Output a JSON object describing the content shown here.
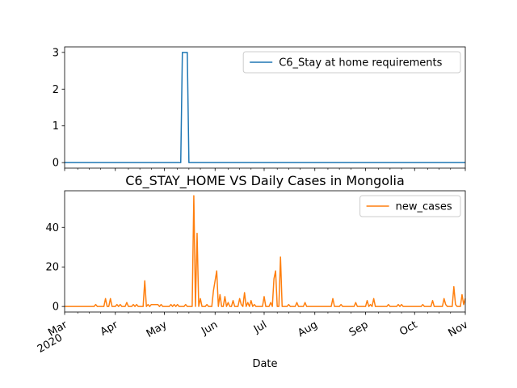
{
  "chart_data": [
    {
      "type": "line",
      "title": "",
      "xlabel": "",
      "ylabel": "",
      "xlim": [
        "2020-03-01",
        "2020-11-01"
      ],
      "ylim": [
        -0.15,
        3.15
      ],
      "yticks": [
        0,
        1,
        2,
        3
      ],
      "show_x_tick_labels": false,
      "grid": false,
      "legend_position": "top-right",
      "series": [
        {
          "name": "C6_Stay at home requirements",
          "color": "#1f77b4",
          "points": [
            [
              "2020-03-01",
              0
            ],
            [
              "2020-05-11",
              0
            ],
            [
              "2020-05-12",
              3
            ],
            [
              "2020-05-15",
              3
            ],
            [
              "2020-05-16",
              0
            ],
            [
              "2020-11-01",
              0
            ]
          ]
        }
      ]
    },
    {
      "type": "line",
      "title": "C6_STAY_HOME VS Daily Cases in Mongolia",
      "xlabel": "Date",
      "ylabel": "",
      "xlim": [
        "2020-03-01",
        "2020-11-01"
      ],
      "ylim": [
        -2.8,
        58.5
      ],
      "yticks": [
        0,
        20,
        40
      ],
      "xticks": [
        {
          "date": "2020-03-01",
          "label": "Mar",
          "sublabel": "2020"
        },
        {
          "date": "2020-04-01",
          "label": "Apr",
          "sublabel": ""
        },
        {
          "date": "2020-05-01",
          "label": "May",
          "sublabel": ""
        },
        {
          "date": "2020-06-01",
          "label": "Jun",
          "sublabel": ""
        },
        {
          "date": "2020-07-01",
          "label": "Jul",
          "sublabel": ""
        },
        {
          "date": "2020-08-01",
          "label": "Aug",
          "sublabel": ""
        },
        {
          "date": "2020-09-01",
          "label": "Sep",
          "sublabel": ""
        },
        {
          "date": "2020-10-01",
          "label": "Oct",
          "sublabel": ""
        },
        {
          "date": "2020-11-01",
          "label": "Nov",
          "sublabel": ""
        }
      ],
      "grid": false,
      "legend_position": "top-right",
      "series": [
        {
          "name": "new_cases",
          "color": "#ff7f0e",
          "points": [
            [
              "2020-03-01",
              0
            ],
            [
              "2020-03-19",
              0
            ],
            [
              "2020-03-20",
              1
            ],
            [
              "2020-03-21",
              0
            ],
            [
              "2020-03-25",
              0
            ],
            [
              "2020-03-26",
              4
            ],
            [
              "2020-03-27",
              0
            ],
            [
              "2020-03-28",
              0
            ],
            [
              "2020-03-29",
              4
            ],
            [
              "2020-03-30",
              0
            ],
            [
              "2020-04-01",
              0
            ],
            [
              "2020-04-02",
              1
            ],
            [
              "2020-04-03",
              0
            ],
            [
              "2020-04-04",
              1
            ],
            [
              "2020-04-05",
              0
            ],
            [
              "2020-04-07",
              0
            ],
            [
              "2020-04-08",
              2
            ],
            [
              "2020-04-09",
              0
            ],
            [
              "2020-04-11",
              0
            ],
            [
              "2020-04-12",
              1
            ],
            [
              "2020-04-13",
              0
            ],
            [
              "2020-04-14",
              1
            ],
            [
              "2020-04-15",
              0
            ],
            [
              "2020-04-18",
              0
            ],
            [
              "2020-04-19",
              13
            ],
            [
              "2020-04-20",
              0
            ],
            [
              "2020-04-21",
              1
            ],
            [
              "2020-04-22",
              0
            ],
            [
              "2020-04-23",
              1
            ],
            [
              "2020-04-27",
              1
            ],
            [
              "2020-04-28",
              0
            ],
            [
              "2020-04-29",
              1
            ],
            [
              "2020-04-30",
              0
            ],
            [
              "2020-05-04",
              0
            ],
            [
              "2020-05-05",
              1
            ],
            [
              "2020-05-06",
              0
            ],
            [
              "2020-05-07",
              1
            ],
            [
              "2020-05-08",
              0
            ],
            [
              "2020-05-09",
              1
            ],
            [
              "2020-05-10",
              0
            ],
            [
              "2020-05-13",
              0
            ],
            [
              "2020-05-14",
              1
            ],
            [
              "2020-05-15",
              0
            ],
            [
              "2020-05-18",
              0
            ],
            [
              "2020-05-19",
              56
            ],
            [
              "2020-05-20",
              0
            ],
            [
              "2020-05-21",
              37
            ],
            [
              "2020-05-22",
              0
            ],
            [
              "2020-05-23",
              4
            ],
            [
              "2020-05-24",
              0
            ],
            [
              "2020-05-26",
              0
            ],
            [
              "2020-05-27",
              1
            ],
            [
              "2020-05-28",
              0
            ],
            [
              "2020-05-30",
              0
            ],
            [
              "2020-05-31",
              8
            ],
            [
              "2020-06-02",
              18
            ],
            [
              "2020-06-03",
              0
            ],
            [
              "2020-06-04",
              6
            ],
            [
              "2020-06-05",
              0
            ],
            [
              "2020-06-06",
              0
            ],
            [
              "2020-06-07",
              5
            ],
            [
              "2020-06-08",
              0
            ],
            [
              "2020-06-09",
              2
            ],
            [
              "2020-06-10",
              0
            ],
            [
              "2020-06-11",
              0
            ],
            [
              "2020-06-12",
              3
            ],
            [
              "2020-06-13",
              0
            ],
            [
              "2020-06-15",
              0
            ],
            [
              "2020-06-16",
              4
            ],
            [
              "2020-06-17",
              1
            ],
            [
              "2020-06-18",
              0
            ],
            [
              "2020-06-19",
              7
            ],
            [
              "2020-06-20",
              0
            ],
            [
              "2020-06-21",
              2
            ],
            [
              "2020-06-22",
              0
            ],
            [
              "2020-06-23",
              3
            ],
            [
              "2020-06-24",
              0
            ],
            [
              "2020-06-25",
              1
            ],
            [
              "2020-06-26",
              0
            ],
            [
              "2020-06-30",
              0
            ],
            [
              "2020-07-01",
              5
            ],
            [
              "2020-07-02",
              0
            ],
            [
              "2020-07-04",
              0
            ],
            [
              "2020-07-05",
              2
            ],
            [
              "2020-07-06",
              0
            ],
            [
              "2020-07-07",
              14
            ],
            [
              "2020-07-08",
              18
            ],
            [
              "2020-07-09",
              0
            ],
            [
              "2020-07-10",
              0
            ],
            [
              "2020-07-11",
              25
            ],
            [
              "2020-07-12",
              0
            ],
            [
              "2020-07-15",
              0
            ],
            [
              "2020-07-16",
              1
            ],
            [
              "2020-07-17",
              0
            ],
            [
              "2020-07-20",
              0
            ],
            [
              "2020-07-21",
              2
            ],
            [
              "2020-07-22",
              0
            ],
            [
              "2020-07-25",
              0
            ],
            [
              "2020-07-26",
              2
            ],
            [
              "2020-07-27",
              0
            ],
            [
              "2020-08-11",
              0
            ],
            [
              "2020-08-12",
              4
            ],
            [
              "2020-08-13",
              0
            ],
            [
              "2020-08-16",
              0
            ],
            [
              "2020-08-17",
              1
            ],
            [
              "2020-08-18",
              0
            ],
            [
              "2020-08-25",
              0
            ],
            [
              "2020-08-26",
              2
            ],
            [
              "2020-08-27",
              0
            ],
            [
              "2020-09-01",
              0
            ],
            [
              "2020-09-02",
              3
            ],
            [
              "2020-09-03",
              0
            ],
            [
              "2020-09-04",
              1
            ],
            [
              "2020-09-05",
              0
            ],
            [
              "2020-09-06",
              4
            ],
            [
              "2020-09-07",
              0
            ],
            [
              "2020-09-14",
              0
            ],
            [
              "2020-09-15",
              1
            ],
            [
              "2020-09-16",
              0
            ],
            [
              "2020-09-20",
              0
            ],
            [
              "2020-09-21",
              1
            ],
            [
              "2020-09-22",
              0
            ],
            [
              "2020-09-23",
              1
            ],
            [
              "2020-09-24",
              0
            ],
            [
              "2020-10-05",
              0
            ],
            [
              "2020-10-06",
              1
            ],
            [
              "2020-10-07",
              0
            ],
            [
              "2020-10-11",
              0
            ],
            [
              "2020-10-12",
              3
            ],
            [
              "2020-10-13",
              0
            ],
            [
              "2020-10-18",
              0
            ],
            [
              "2020-10-19",
              4
            ],
            [
              "2020-10-20",
              1
            ],
            [
              "2020-10-21",
              0
            ],
            [
              "2020-10-24",
              0
            ],
            [
              "2020-10-25",
              10
            ],
            [
              "2020-10-26",
              1
            ],
            [
              "2020-10-27",
              0
            ],
            [
              "2020-10-29",
              0
            ],
            [
              "2020-10-30",
              6
            ],
            [
              "2020-10-31",
              1
            ],
            [
              "2020-11-01",
              4
            ]
          ]
        }
      ]
    }
  ]
}
